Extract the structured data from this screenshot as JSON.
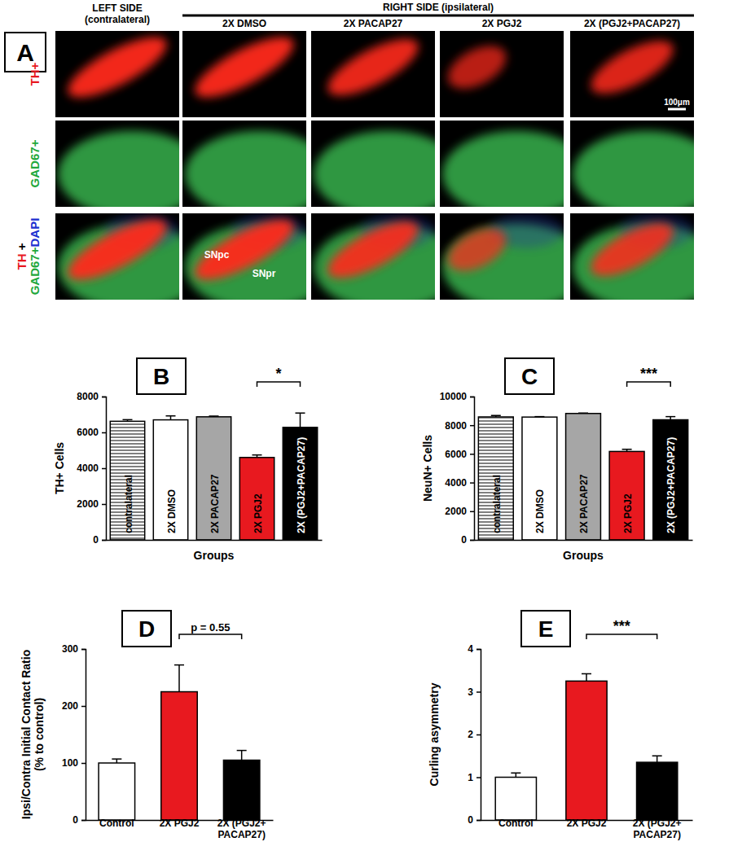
{
  "chart_data": [
    {
      "type": "bar",
      "title": "B",
      "ylabel": "TH+ Cells",
      "xlabel": "Groups",
      "categories": [
        "contralateral",
        "2X DMSO",
        "2X PACAP27",
        "2X PGJ2",
        "2X (PGJ2+PACAP27)"
      ],
      "values": [
        6620,
        6700,
        6870,
        4600,
        6280
      ],
      "errors": [
        90,
        220,
        40,
        140,
        800
      ],
      "colors": [
        "#ffffff",
        "#ffffff",
        "#a6a6a6",
        "#e8191f",
        "#000000"
      ],
      "ylim": [
        0,
        8000
      ],
      "yticks": [
        0,
        2000,
        4000,
        6000,
        8000
      ],
      "tick_labels": "y",
      "annotations": [
        {
          "text": "*",
          "from": 3,
          "to": 4
        }
      ]
    },
    {
      "type": "bar",
      "title": "C",
      "ylabel": "NeuN+ Cells",
      "xlabel": "Groups",
      "categories": [
        "contralateral",
        "2X DMSO",
        "2X PACAP27",
        "2X PGJ2",
        "2X (PGJ2+PACAP27)"
      ],
      "values": [
        8580,
        8570,
        8820,
        6170,
        8380
      ],
      "errors": [
        100,
        30,
        30,
        150,
        220
      ],
      "colors": [
        "#ffffff",
        "#ffffff",
        "#a6a6a6",
        "#e8191f",
        "#000000"
      ],
      "ylim": [
        0,
        10000
      ],
      "yticks": [
        0,
        2000,
        4000,
        6000,
        8000,
        10000
      ],
      "tick_labels": "y",
      "annotations": [
        {
          "text": "***",
          "from": 3,
          "to": 4
        }
      ]
    },
    {
      "type": "bar",
      "title": "D",
      "ylabel": "Ipsi/Contra Initial Contact Ratio\n(% to control)",
      "categories": [
        "Control",
        "2X PGJ2",
        "2X (PGJ2+\nPACAP27)"
      ],
      "values": [
        100,
        225,
        105
      ],
      "errors": [
        7,
        47,
        17
      ],
      "colors": [
        "#ffffff",
        "#e8191f",
        "#000000"
      ],
      "ylim": [
        0,
        300
      ],
      "yticks": [
        0,
        100,
        200,
        300
      ],
      "annotations": [
        {
          "text": "p = 0.55",
          "from": 1,
          "to": 2
        }
      ]
    },
    {
      "type": "bar",
      "title": "E",
      "ylabel": "Curling asymmetry",
      "categories": [
        "Control",
        "2X PGJ2",
        "2X (PGJ2+\nPACAP27)"
      ],
      "values": [
        1.0,
        3.25,
        1.35
      ],
      "errors": [
        0.1,
        0.17,
        0.15
      ],
      "colors": [
        "#ffffff",
        "#e8191f",
        "#000000"
      ],
      "ylim": [
        0,
        4
      ],
      "yticks": [
        0,
        1,
        2,
        3,
        4
      ],
      "annotations": [
        {
          "text": "***",
          "from": 1,
          "to": 2
        }
      ]
    }
  ],
  "image_panel": {
    "label": "A",
    "header_left": "LEFT SIDE\n(contralateral)",
    "header_right": "RIGHT SIDE (ipsilateral)",
    "columns": [
      "2X DMSO",
      "2X PACAP27",
      "2X PGJ2",
      "2X (PGJ2+PACAP27)"
    ],
    "row_labels": [
      [
        [
          {
            "text": "TH+",
            "color": "#e8191f"
          }
        ]
      ],
      [
        [
          {
            "text": "GAD67+",
            "color": "#1fa83c"
          }
        ]
      ],
      [
        [
          {
            "text": "TH",
            "color": "#e8191f"
          },
          {
            "text": " +",
            "color": "#000000"
          }
        ],
        [
          {
            "text": "GAD67+",
            "color": "#1fa83c"
          },
          {
            "text": "DAPI",
            "color": "#2030d0"
          }
        ]
      ]
    ],
    "scale_bar": "100μm",
    "regions": [
      "SNpc",
      "SNpr"
    ]
  }
}
